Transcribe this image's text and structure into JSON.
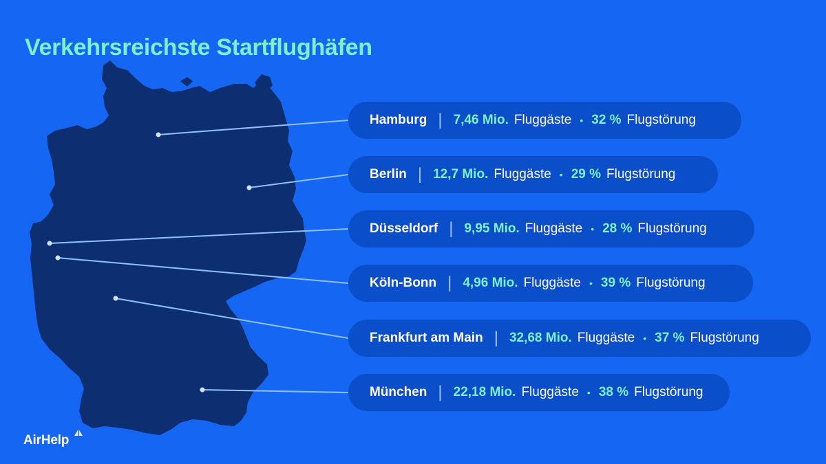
{
  "title": "Verkehrsreichste Startflughäfen",
  "logo": {
    "text": "AirHelp"
  },
  "airports": [
    {
      "city": "Hamburg",
      "passengers": "7,46 Mio.",
      "passengers_unit": "Fluggäste",
      "disruption": "32 %",
      "disruption_unit": "Flugstörung"
    },
    {
      "city": "Berlin",
      "passengers": "12,7 Mio.",
      "passengers_unit": "Fluggäste",
      "disruption": "29 %",
      "disruption_unit": "Flugstörung"
    },
    {
      "city": "Düsseldorf",
      "passengers": "9,95 Mio.",
      "passengers_unit": "Fluggäste",
      "disruption": "28 %",
      "disruption_unit": "Flugstörung"
    },
    {
      "city": "Köln-Bonn",
      "passengers": "4,96 Mio.",
      "passengers_unit": "Fluggäste",
      "disruption": "39 %",
      "disruption_unit": "Flugstörung"
    },
    {
      "city": "Frankfurt am Main",
      "passengers": "32,68 Mio.",
      "passengers_unit": "Fluggäste",
      "disruption": "37 %",
      "disruption_unit": "Flugstörung"
    },
    {
      "city": "München",
      "passengers": "22,18 Mio.",
      "passengers_unit": "Fluggäste",
      "disruption": "38 %",
      "disruption_unit": "Flugstörung"
    }
  ],
  "colors": {
    "background": "#1566f2",
    "map": "#0e2e72",
    "pill": "#0b4ec9",
    "accent": "#7ef0d2",
    "connector": "#8fc0ff"
  }
}
